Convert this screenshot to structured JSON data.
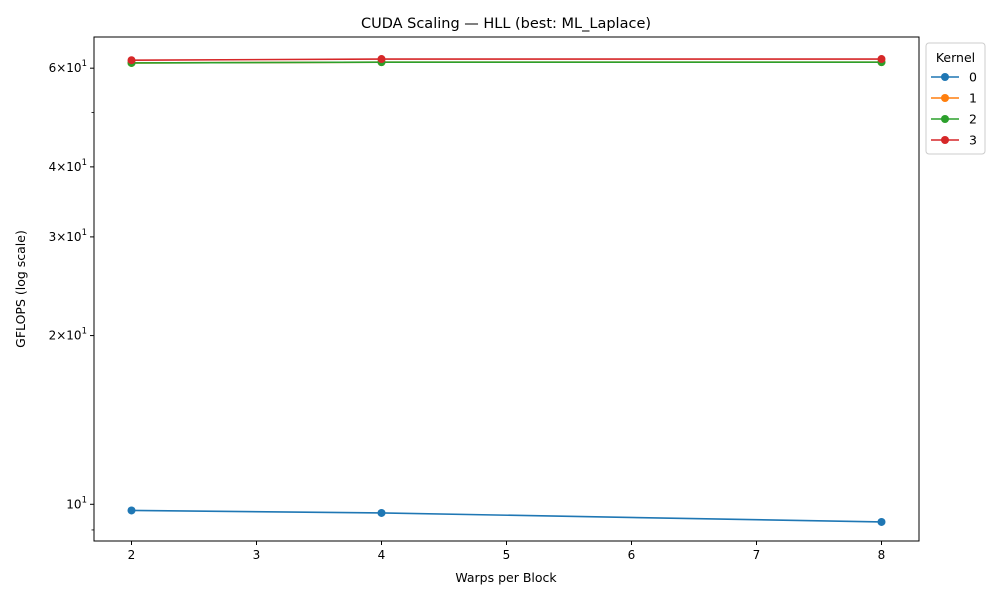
{
  "chart_data": {
    "type": "line",
    "title": "CUDA Scaling — HLL (best: ML_Laplace)",
    "xlabel": "Warps per Block",
    "ylabel": "GFLOPS (log scale)",
    "yscale": "log",
    "xlim": [
      1.7,
      8.3
    ],
    "ylim": [
      8.6,
      68.2
    ],
    "x_ticks": [
      2,
      3,
      4,
      5,
      6,
      7,
      8
    ],
    "y_major_ticks": [
      {
        "value": 10,
        "base": "10",
        "exp": "1",
        "coef": ""
      },
      {
        "value": 20,
        "base": "10",
        "exp": "1",
        "coef": "2"
      },
      {
        "value": 30,
        "base": "10",
        "exp": "1",
        "coef": "3"
      },
      {
        "value": 40,
        "base": "10",
        "exp": "1",
        "coef": "4"
      },
      {
        "value": 60,
        "base": "10",
        "exp": "1",
        "coef": "6"
      }
    ],
    "y_minor_ticks": [
      9,
      50
    ],
    "grid": false,
    "legend": {
      "title": "Kernel",
      "placement": "outside top-right"
    },
    "series": [
      {
        "name": "0",
        "color": "#1f77b4",
        "x": [
          2,
          4,
          8
        ],
        "y": [
          9.75,
          9.65,
          9.3
        ]
      },
      {
        "name": "1",
        "color": "#ff7f0e",
        "x": [
          2,
          4,
          8
        ],
        "y": [
          61.3,
          61.5,
          61.5
        ]
      },
      {
        "name": "2",
        "color": "#2ca02c",
        "x": [
          2,
          4,
          8
        ],
        "y": [
          61.3,
          61.5,
          61.5
        ]
      },
      {
        "name": "3",
        "color": "#d62728",
        "x": [
          2,
          4,
          8
        ],
        "y": [
          62.0,
          62.3,
          62.3
        ]
      }
    ]
  }
}
